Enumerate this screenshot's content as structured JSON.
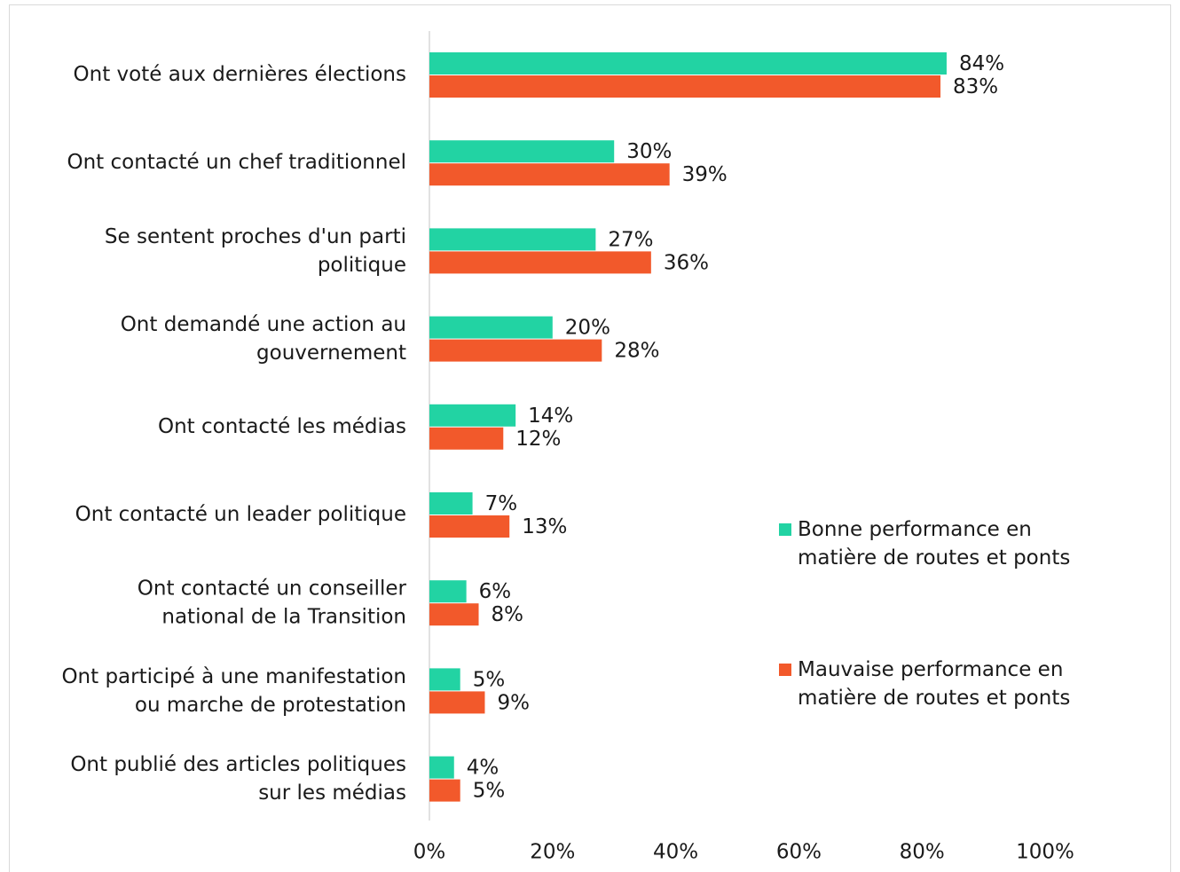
{
  "chart_data": {
    "type": "hbar",
    "categories": [
      "Ont voté aux dernières élections",
      "Ont contacté un chef traditionnel",
      "Se sentent proches d'un parti\npolitique",
      "Ont demandé une action au\ngouvernement",
      "Ont contacté les médias",
      "Ont contacté un leader politique",
      "Ont contacté un conseiller\nnational de la Transition",
      "Ont participé à une manifestation\nou marche de protestation",
      "Ont publié des articles politiques\nsur les médias"
    ],
    "series": [
      {
        "name": "Bonne performance en\nmatière de routes et ponts",
        "color": "#22d3a3",
        "values": [
          84,
          30,
          27,
          20,
          14,
          7,
          6,
          5,
          4
        ],
        "value_labels": [
          "84%",
          "30%",
          "27%",
          "20%",
          "14%",
          "7%",
          "6%",
          "5%",
          "4%"
        ]
      },
      {
        "name": "Mauvaise performance en\nmatière de routes et ponts",
        "color": "#f2592b",
        "values": [
          83,
          39,
          36,
          28,
          12,
          13,
          8,
          9,
          5
        ],
        "value_labels": [
          "83%",
          "39%",
          "36%",
          "28%",
          "12%",
          "13%",
          "8%",
          "9%",
          "5%"
        ]
      }
    ],
    "xlim": [
      0,
      100
    ],
    "xticks": [
      {
        "value": 0,
        "label": "0%"
      },
      {
        "value": 20,
        "label": "20%"
      },
      {
        "value": 40,
        "label": "40%"
      },
      {
        "value": 60,
        "label": "60%"
      },
      {
        "value": 80,
        "label": "80%"
      },
      {
        "value": 100,
        "label": "100%"
      }
    ],
    "grid": false,
    "legend": "right"
  }
}
